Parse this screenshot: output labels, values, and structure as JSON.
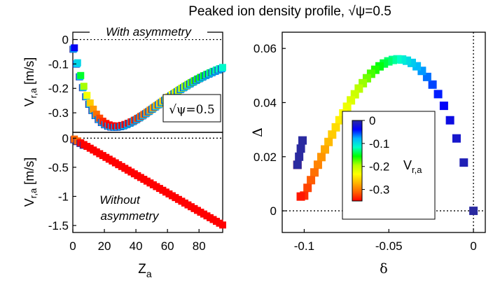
{
  "figure": {
    "title": "Peaked ion density profile, √ψ=0.5"
  },
  "colors": {
    "colormap": [
      "#2a2aa0",
      "#0000ff",
      "#00b4ff",
      "#00ffc8",
      "#00ff00",
      "#b4ff00",
      "#ffff00",
      "#ffb400",
      "#ff6400",
      "#ff0000"
    ],
    "axes": "#000000",
    "zero_line": "#000000"
  },
  "chart_data": [
    {
      "type": "scatter",
      "panel": "top-left",
      "annotation": "With asymmetry",
      "inset_label": "√ψ=0.5",
      "ylabel": "V",
      "ylabel_sub": "r,a",
      "ylabel_unit": " [m/s]",
      "xlim": [
        0,
        95
      ],
      "ylim": [
        -0.38,
        0.03
      ],
      "yticks": [
        0,
        -0.1,
        -0.2,
        -0.3
      ],
      "ytick_labels": [
        "0",
        "-0.1",
        "-0.2",
        "-0.3"
      ],
      "zero_line": true,
      "curve": "V = -0.35 * (Z/27) * exp(1 - Z/27) - 0.015 * (Z/95)",
      "z_range": [
        1,
        95
      ],
      "z_step": 2
    },
    {
      "type": "scatter",
      "panel": "bottom-left",
      "annotation": [
        "Without",
        "asymmetry"
      ],
      "ylabel": "V",
      "ylabel_sub": "r,a",
      "ylabel_unit": " [m/s]",
      "xlabel": "Z",
      "xlabel_sub": "a",
      "xlim": [
        0,
        95
      ],
      "ylim": [
        -1.62,
        0.1
      ],
      "xticks": [
        0,
        20,
        40,
        60,
        80
      ],
      "xtick_labels": [
        "0",
        "20",
        "40",
        "60",
        "80"
      ],
      "yticks": [
        0,
        -0.5,
        -1,
        -1.5
      ],
      "ytick_labels": [
        "0",
        "-0.5",
        "-1",
        "-1.5"
      ],
      "zero_line": true,
      "slope": -0.0157,
      "z_range": [
        1,
        95
      ],
      "z_step": 2
    },
    {
      "type": "scatter",
      "panel": "right",
      "xlabel": "δ",
      "ylabel": "Δ",
      "xlim": [
        -0.113,
        0.007
      ],
      "ylim": [
        -0.008,
        0.066
      ],
      "xticks": [
        -0.1,
        -0.05,
        0
      ],
      "xtick_labels": [
        "-0.1",
        "-0.05",
        "0"
      ],
      "yticks": [
        0,
        0.02,
        0.04,
        0.06
      ],
      "ytick_labels": [
        "0",
        "0.02",
        "0.04",
        "0.06"
      ],
      "zero_lines": true,
      "points_from": "top-left series: Δ = 0.056*sin(π*(1-u)^0.62), δ = -0.104*(1-u)^0.8 - 0.002*sin(π(1-u)), u = V/min(V) on descending branch",
      "colorbar": {
        "label": "V",
        "label_sub": "r,a",
        "range": [
          -0.35,
          0
        ],
        "ticks": [
          0,
          -0.1,
          -0.2,
          -0.3
        ],
        "tick_labels": [
          "0",
          "-0.1",
          "-0.2",
          "-0.3"
        ]
      }
    }
  ]
}
